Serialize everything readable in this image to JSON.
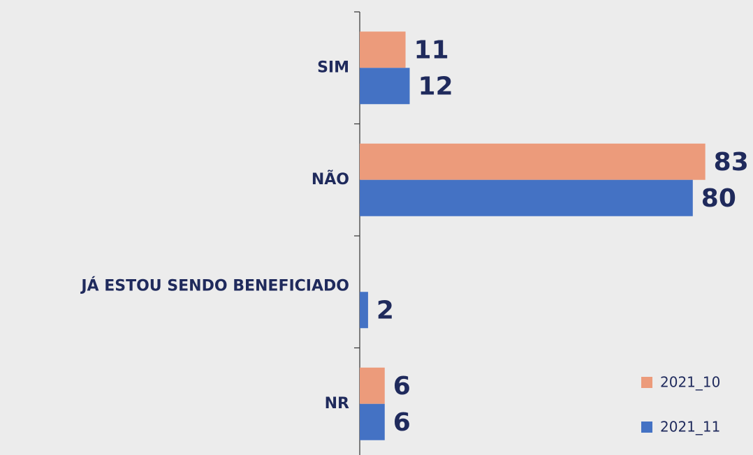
{
  "chart_data": {
    "type": "bar",
    "orientation": "horizontal",
    "categories": [
      "SIM",
      "NÃO",
      "JÁ ESTOU SENDO BENEFICIADO",
      "NR"
    ],
    "series": [
      {
        "name": "2021_10",
        "color": "#ec9b7b",
        "values": [
          11,
          83,
          null,
          6
        ]
      },
      {
        "name": "2021_11",
        "color": "#4472c4",
        "values": [
          12,
          80,
          2,
          6
        ]
      }
    ],
    "legend": "lower right"
  }
}
